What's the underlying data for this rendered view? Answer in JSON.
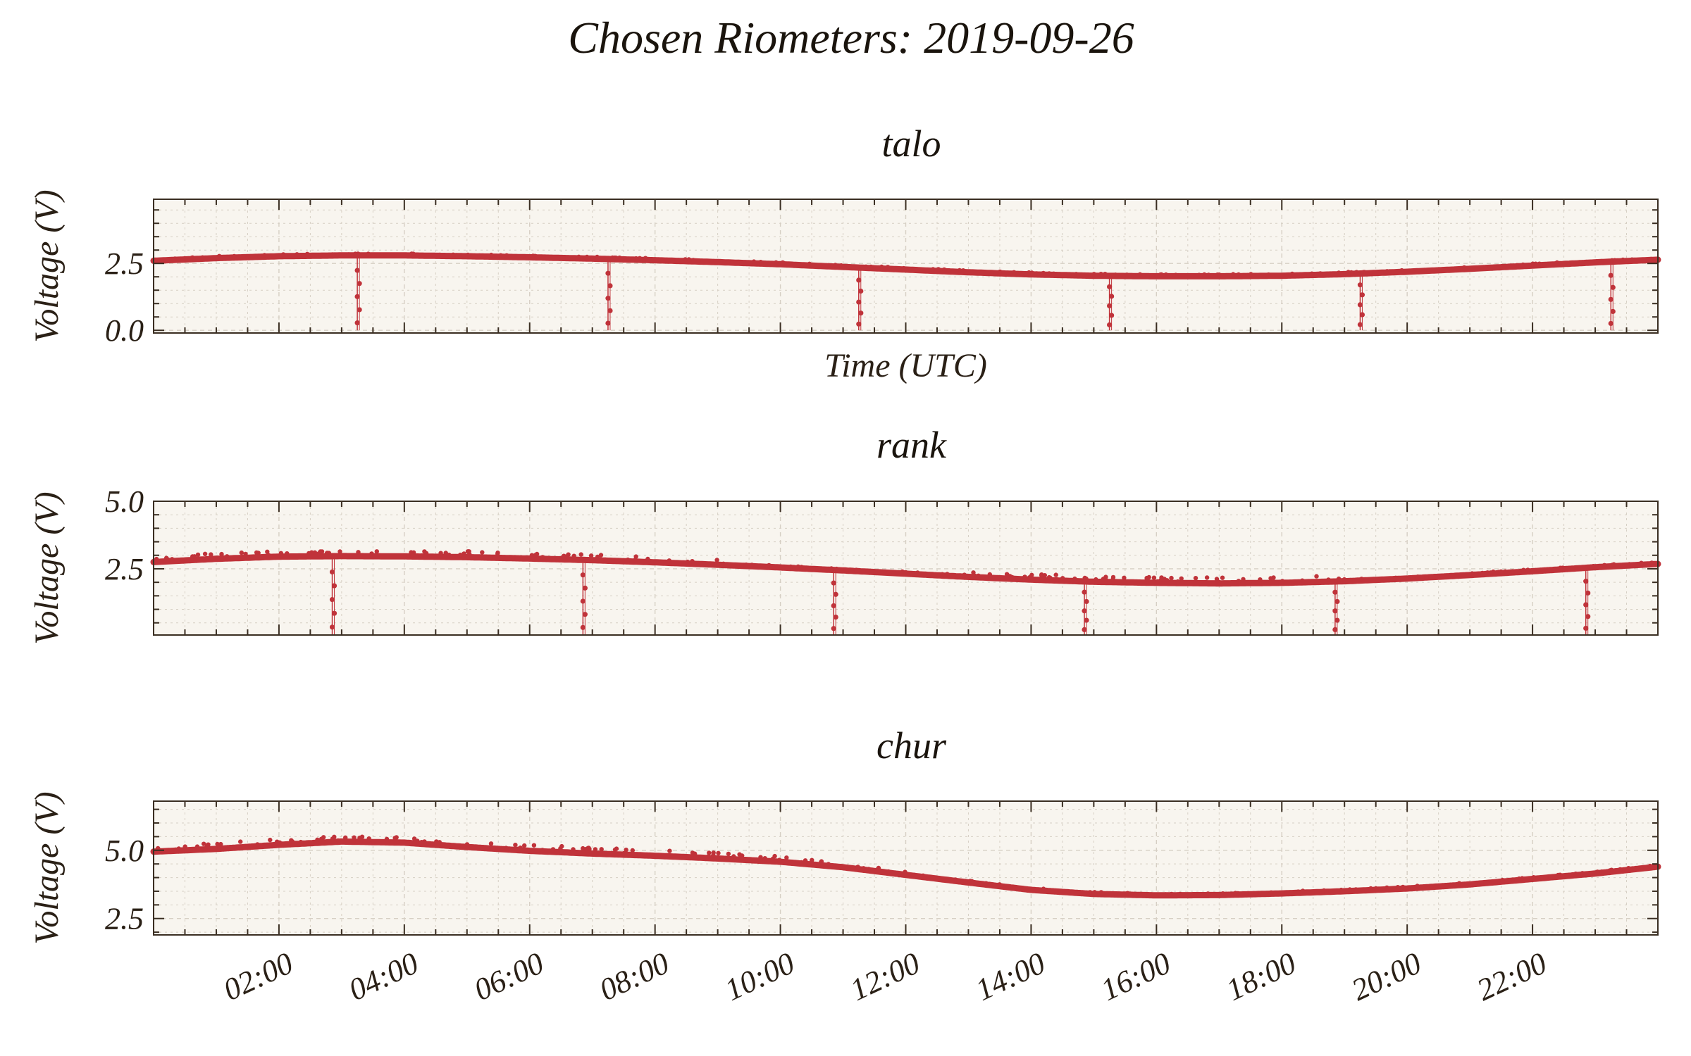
{
  "figure": {
    "title": "Chosen Riometers: 2019-09-26",
    "colors": {
      "background": "#ffffff",
      "plot_background": "#f8f5ef",
      "grid": "#d6cfc4",
      "frame": "#3a2e22",
      "series": "#c0333a"
    }
  },
  "chart_data": [
    {
      "type": "line",
      "title": "talo",
      "xlabel": "Time (UTC)",
      "ylabel": "Voltage (V)",
      "xlim": [
        0,
        24
      ],
      "ylim": [
        -0.1,
        4.9
      ],
      "yticks": [
        0.0,
        2.5
      ],
      "ytick_labels": [
        "0.0",
        "2.5"
      ],
      "xtick_labels": [],
      "grid": true,
      "series": [
        {
          "x": [
            0.0,
            1.0,
            2.0,
            3.0,
            4.0,
            5.0,
            6.0,
            7.0,
            8.0,
            9.0,
            10.0,
            11.0,
            12.0,
            13.0,
            14.0,
            15.0,
            16.0,
            17.0,
            18.0,
            19.0,
            20.0,
            21.0,
            22.0,
            23.0,
            24.0
          ],
          "y": [
            2.6,
            2.7,
            2.77,
            2.8,
            2.8,
            2.77,
            2.73,
            2.68,
            2.62,
            2.55,
            2.47,
            2.37,
            2.27,
            2.17,
            2.09,
            2.04,
            2.02,
            2.02,
            2.04,
            2.1,
            2.19,
            2.3,
            2.42,
            2.54,
            2.64
          ],
          "dropouts": [
            3.25,
            7.25,
            11.25,
            15.25,
            19.25,
            23.25
          ],
          "dropout_min": 0.0
        }
      ]
    },
    {
      "type": "line",
      "title": "rank",
      "xlabel": "",
      "ylabel": "Voltage (V)",
      "xlim": [
        0,
        24
      ],
      "ylim": [
        0.05,
        5.0
      ],
      "yticks": [
        2.5,
        5.0
      ],
      "ytick_labels": [
        "2.5",
        "5.0"
      ],
      "xtick_labels": [],
      "grid": true,
      "series": [
        {
          "x": [
            0.0,
            1.0,
            2.0,
            3.0,
            4.0,
            5.0,
            6.0,
            7.0,
            8.0,
            9.0,
            10.0,
            11.0,
            12.0,
            13.0,
            14.0,
            15.0,
            16.0,
            17.0,
            18.0,
            19.0,
            20.0,
            21.0,
            22.0,
            23.0,
            24.0
          ],
          "y": [
            2.75,
            2.87,
            2.95,
            2.97,
            2.96,
            2.93,
            2.88,
            2.82,
            2.74,
            2.65,
            2.55,
            2.44,
            2.32,
            2.2,
            2.1,
            2.02,
            1.98,
            1.96,
            1.98,
            2.04,
            2.14,
            2.27,
            2.41,
            2.56,
            2.68
          ],
          "dropouts": [
            2.85,
            6.85,
            10.85,
            14.85,
            18.85,
            22.85
          ],
          "dropout_min": 0.05
        }
      ]
    },
    {
      "type": "line",
      "title": "chur",
      "xlabel": "",
      "ylabel": "Voltage (V)",
      "xlim": [
        0,
        24
      ],
      "ylim": [
        1.9,
        6.8
      ],
      "yticks": [
        2.5,
        5.0
      ],
      "ytick_labels": [
        "2.5",
        "5.0"
      ],
      "xtick_labels": [
        "02:00",
        "04:00",
        "06:00",
        "08:00",
        "10:00",
        "12:00",
        "14:00",
        "16:00",
        "18:00",
        "20:00",
        "22:00"
      ],
      "xtick_values": [
        2,
        4,
        6,
        8,
        10,
        12,
        14,
        16,
        18,
        20,
        22
      ],
      "grid": true,
      "series": [
        {
          "x": [
            0.0,
            1.0,
            2.0,
            3.0,
            4.0,
            5.0,
            6.0,
            7.0,
            8.0,
            9.0,
            10.0,
            11.0,
            12.0,
            13.0,
            14.0,
            15.0,
            16.0,
            17.0,
            18.0,
            19.0,
            20.0,
            21.0,
            22.0,
            23.0,
            24.0
          ],
          "y": [
            4.95,
            5.05,
            5.2,
            5.32,
            5.28,
            5.12,
            4.98,
            4.88,
            4.8,
            4.7,
            4.58,
            4.38,
            4.1,
            3.82,
            3.55,
            3.4,
            3.35,
            3.36,
            3.42,
            3.5,
            3.6,
            3.75,
            3.95,
            4.15,
            4.4
          ]
        }
      ]
    }
  ]
}
